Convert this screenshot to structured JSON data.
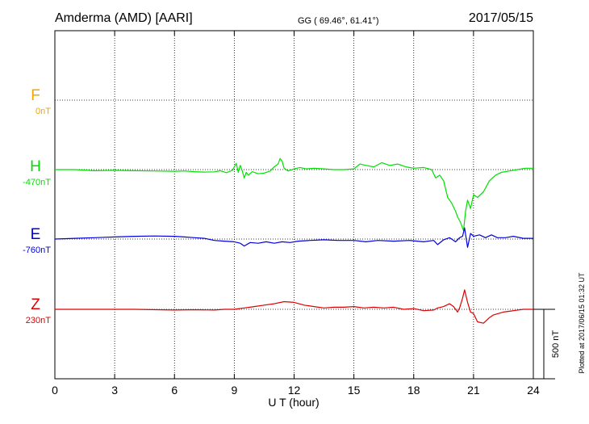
{
  "header": {
    "station": "Amderma (AMD)  [AARI]",
    "coords": "GG ( 69.46°,  61.41°)",
    "date": "2017/05/15"
  },
  "side_note": "Plotted at 2017/06/15 01:32 UT",
  "scale_label": "500 nT",
  "chart_data": {
    "type": "line",
    "xlabel": "U T (hour)",
    "xlim": [
      0,
      24
    ],
    "xticks": [
      0,
      3,
      6,
      9,
      12,
      15,
      18,
      21,
      24
    ],
    "grid": true,
    "scale_bar_nT": 500,
    "series": [
      {
        "name": "F",
        "baseline_label": "0nT",
        "color": "#f5a300",
        "x": [],
        "y": []
      },
      {
        "name": "H",
        "baseline_label": "-470nT",
        "color": "#00e000",
        "x": [
          0,
          1,
          2,
          3,
          4,
          5,
          6,
          6.5,
          7,
          7.5,
          8,
          8.3,
          8.6,
          8.9,
          9.1,
          9.2,
          9.3,
          9.4,
          9.5,
          9.6,
          9.7,
          9.9,
          10.2,
          10.5,
          10.8,
          11.0,
          11.2,
          11.3,
          11.4,
          11.5,
          11.7,
          12.0,
          12.3,
          12.6,
          13.0,
          13.5,
          14.0,
          14.5,
          15.0,
          15.3,
          15.6,
          16.0,
          16.4,
          16.8,
          17.2,
          17.6,
          18.0,
          18.5,
          18.9,
          19.1,
          19.3,
          19.5,
          19.7,
          19.9,
          20.1,
          20.2,
          20.35,
          20.5,
          20.6,
          20.7,
          20.85,
          21.0,
          21.2,
          21.5,
          21.8,
          22.1,
          22.4,
          22.8,
          23.2,
          23.6,
          24.0
        ],
        "y": [
          0,
          0,
          -8,
          -5,
          -8,
          -10,
          -12,
          -10,
          -15,
          -18,
          -16,
          -8,
          -22,
          -6,
          45,
          -20,
          30,
          -10,
          -60,
          -20,
          -40,
          -15,
          -30,
          -25,
          -10,
          20,
          40,
          80,
          60,
          10,
          -10,
          5,
          15,
          5,
          10,
          5,
          0,
          0,
          5,
          40,
          30,
          20,
          50,
          30,
          40,
          20,
          10,
          15,
          0,
          -60,
          -40,
          -80,
          -200,
          -240,
          -300,
          -340,
          -380,
          -440,
          -300,
          -220,
          -280,
          -180,
          -200,
          -160,
          -80,
          -40,
          -20,
          -10,
          0,
          10,
          10
        ]
      },
      {
        "name": "E",
        "baseline_label": "-760nT",
        "color": "#0000dd",
        "x": [
          0,
          1,
          2,
          3,
          4,
          5,
          6,
          6.5,
          7,
          7.5,
          8,
          8.5,
          9.0,
          9.3,
          9.5,
          9.8,
          10.2,
          10.6,
          11.0,
          11.4,
          11.8,
          12.2,
          12.8,
          13.5,
          14.2,
          15.0,
          15.6,
          16.2,
          17.0,
          17.8,
          18.5,
          19.0,
          19.2,
          19.5,
          19.8,
          20.1,
          20.3,
          20.45,
          20.55,
          20.7,
          20.85,
          21.0,
          21.3,
          21.6,
          21.9,
          22.2,
          22.6,
          23.0,
          23.5,
          24.0
        ],
        "y": [
          0,
          5,
          10,
          15,
          20,
          22,
          20,
          15,
          10,
          5,
          -10,
          -15,
          -20,
          -30,
          -50,
          -25,
          -30,
          -20,
          -30,
          -20,
          -25,
          -15,
          -10,
          -5,
          -10,
          -10,
          -20,
          -10,
          -15,
          -10,
          -20,
          -10,
          -40,
          -5,
          10,
          -20,
          10,
          20,
          80,
          -60,
          40,
          20,
          30,
          10,
          30,
          10,
          10,
          20,
          5,
          5
        ]
      },
      {
        "name": "Z",
        "baseline_label": "230nT",
        "color": "#dd0000",
        "x": [
          0,
          2,
          4,
          6,
          7,
          8,
          8.5,
          9.0,
          9.5,
          10.0,
          10.5,
          11.0,
          11.5,
          12.0,
          12.5,
          13.0,
          13.5,
          14.0,
          14.5,
          15.0,
          15.5,
          16.0,
          16.5,
          17.0,
          17.5,
          18.0,
          18.5,
          19.0,
          19.2,
          19.5,
          19.8,
          20.0,
          20.2,
          20.3,
          20.45,
          20.55,
          20.7,
          20.85,
          21.0,
          21.2,
          21.5,
          21.8,
          22.0,
          22.5,
          23.0,
          23.5,
          24.0
        ],
        "y": [
          0,
          0,
          0,
          -5,
          -3,
          -5,
          0,
          0,
          10,
          20,
          30,
          40,
          55,
          50,
          30,
          20,
          10,
          15,
          15,
          20,
          10,
          15,
          10,
          15,
          0,
          5,
          -10,
          -5,
          10,
          20,
          40,
          20,
          -20,
          10,
          80,
          140,
          50,
          -20,
          -30,
          -90,
          -100,
          -60,
          -40,
          -20,
          -10,
          0,
          0
        ]
      }
    ]
  }
}
